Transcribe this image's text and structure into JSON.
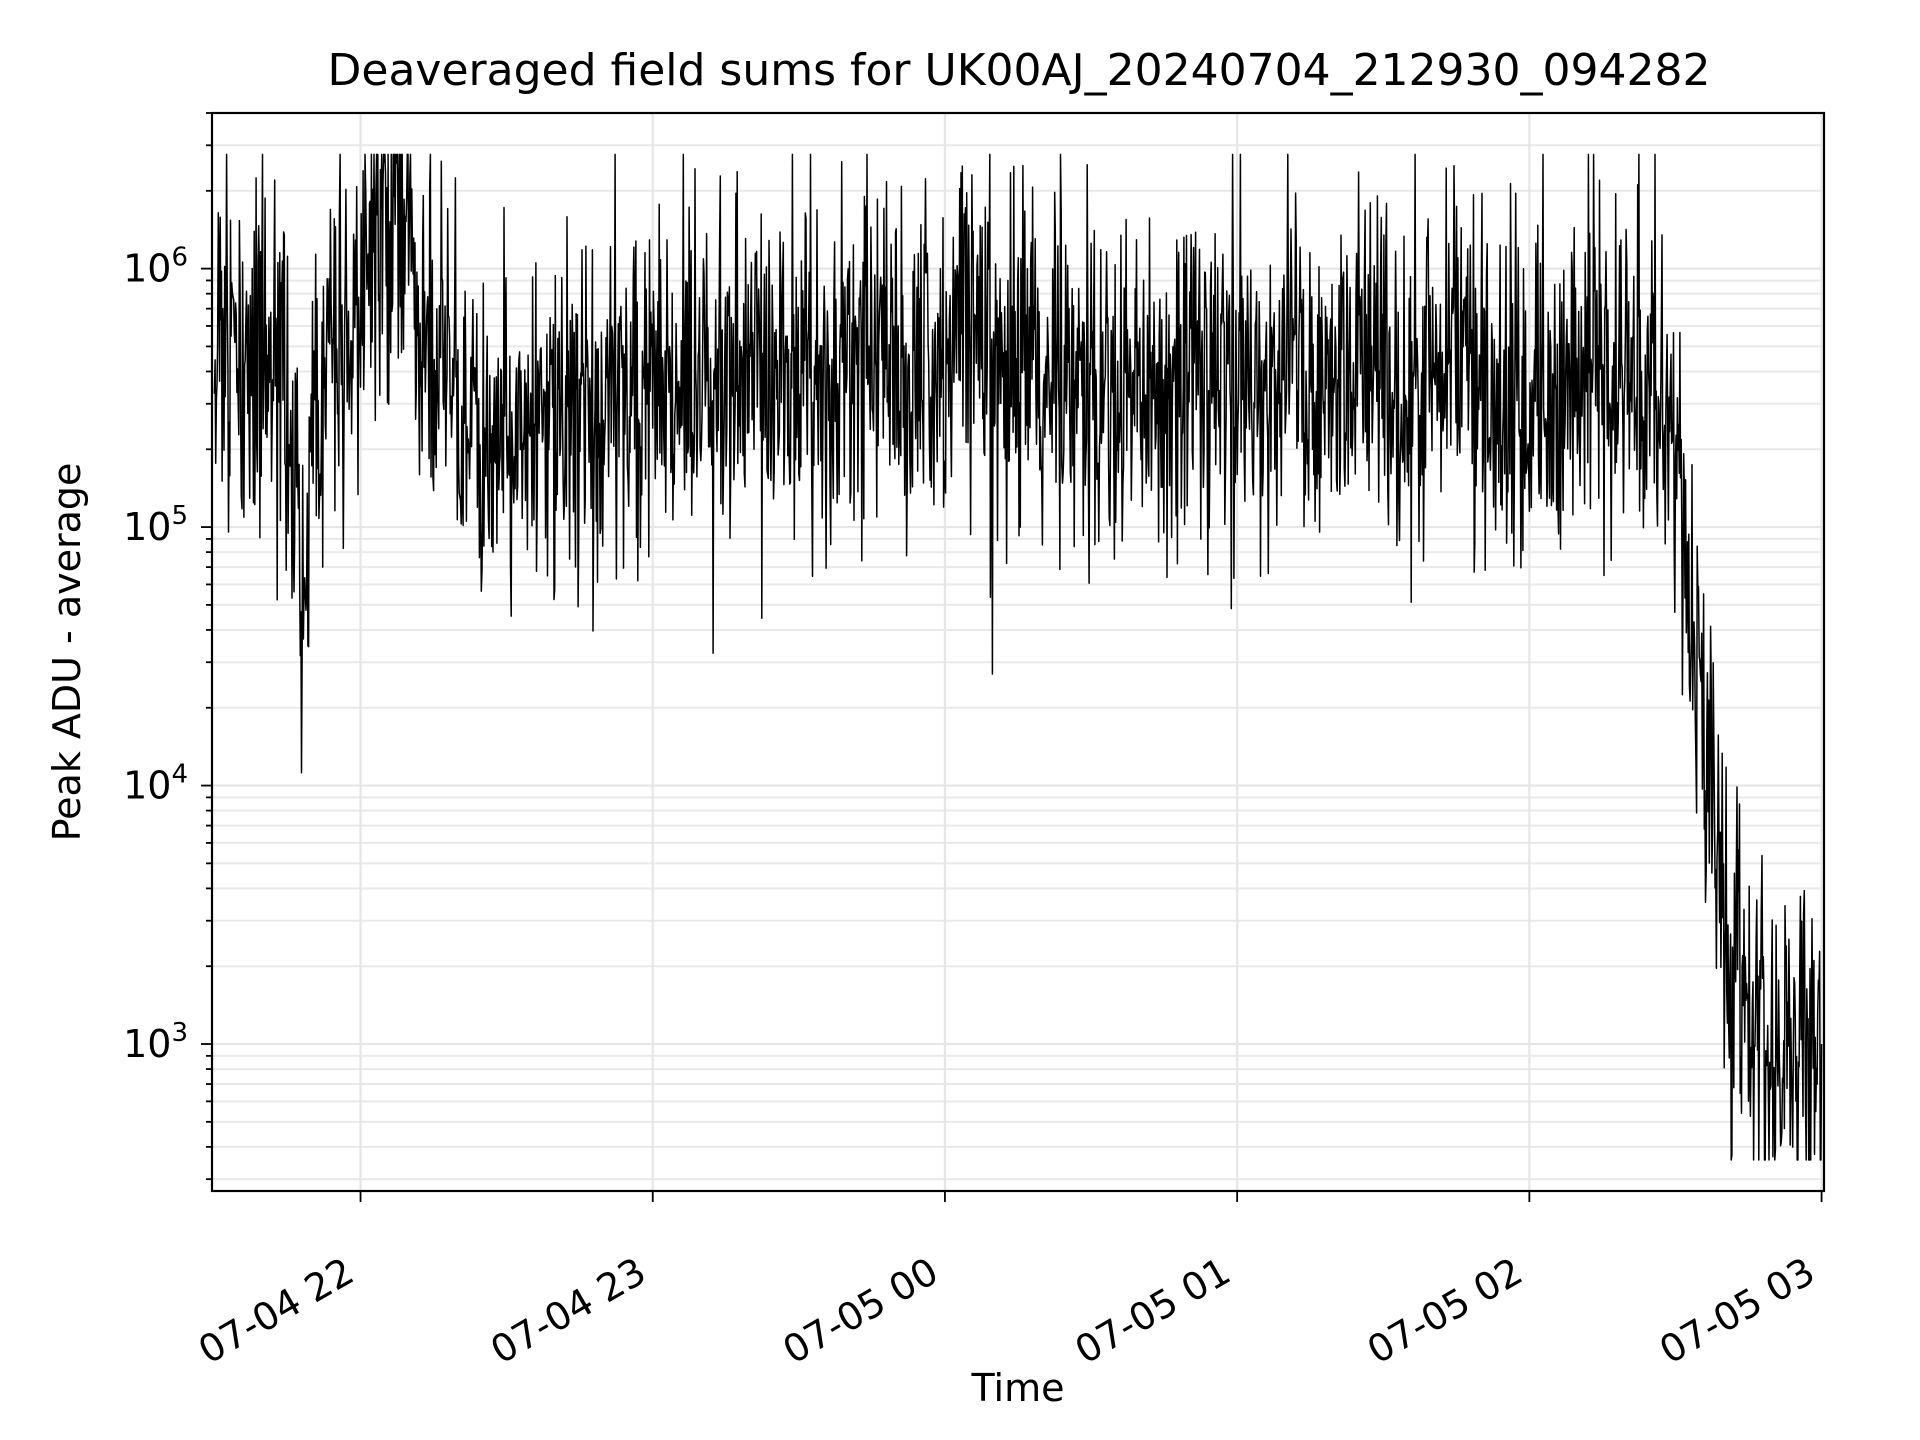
{
  "chart_data": {
    "type": "line",
    "title": "Deaveraged field sums for UK00AJ_20240704_212930_094282",
    "xlabel": "Time",
    "ylabel": "Peak ADU - average",
    "yscale": "log",
    "grid": "on",
    "xlim": [
      "2024-07-04 21:29:30",
      "2024-07-05 03:00:30"
    ],
    "ylim": [
      270,
      4000000
    ],
    "x_ticks": [
      "07-04 22",
      "07-04 23",
      "07-05 00",
      "07-05 01",
      "07-05 02",
      "07-05 03"
    ],
    "y_ticks": [
      {
        "base": "10",
        "exp": "3"
      },
      {
        "base": "10",
        "exp": "4"
      },
      {
        "base": "10",
        "exp": "5"
      },
      {
        "base": "10",
        "exp": "6"
      }
    ],
    "series": [
      {
        "color": "#000000",
        "x": [
          "2024-07-04 21:30",
          "2024-07-04 21:35",
          "2024-07-04 21:40",
          "2024-07-04 21:45",
          "2024-07-04 21:47",
          "2024-07-04 21:48",
          "2024-07-04 21:50",
          "2024-07-04 21:55",
          "2024-07-04 21:57",
          "2024-07-04 22:00",
          "2024-07-04 22:05",
          "2024-07-04 22:10",
          "2024-07-04 22:15",
          "2024-07-04 22:20",
          "2024-07-04 22:30",
          "2024-07-04 22:40",
          "2024-07-04 22:50",
          "2024-07-04 23:00",
          "2024-07-04 23:10",
          "2024-07-04 23:20",
          "2024-07-04 23:30",
          "2024-07-04 23:40",
          "2024-07-04 23:50",
          "2024-07-05 00:00",
          "2024-07-05 00:05",
          "2024-07-05 00:10",
          "2024-07-05 00:20",
          "2024-07-05 00:30",
          "2024-07-05 00:40",
          "2024-07-05 00:50",
          "2024-07-05 01:00",
          "2024-07-05 01:10",
          "2024-07-05 01:20",
          "2024-07-05 01:30",
          "2024-07-05 01:40",
          "2024-07-05 01:50",
          "2024-07-05 02:00",
          "2024-07-05 02:10",
          "2024-07-05 02:20",
          "2024-07-05 02:25",
          "2024-07-05 02:30",
          "2024-07-05 02:33",
          "2024-07-05 02:35",
          "2024-07-05 02:38",
          "2024-07-05 02:40",
          "2024-07-05 02:45",
          "2024-07-05 02:50",
          "2024-07-05 02:55",
          "2024-07-05 03:00"
        ],
        "y": [
          500000,
          400000,
          450000,
          350000,
          100000,
          25000,
          200000,
          500000,
          500000,
          800000,
          1500000,
          1200000,
          500000,
          250000,
          200000,
          250000,
          300000,
          350000,
          350000,
          400000,
          350000,
          400000,
          350000,
          400000,
          800000,
          350000,
          400000,
          300000,
          300000,
          350000,
          400000,
          400000,
          350000,
          400000,
          400000,
          350000,
          300000,
          300000,
          350000,
          400000,
          250000,
          50000,
          25000,
          8000,
          2000,
          1500,
          800,
          900,
          1000
        ]
      }
    ]
  }
}
